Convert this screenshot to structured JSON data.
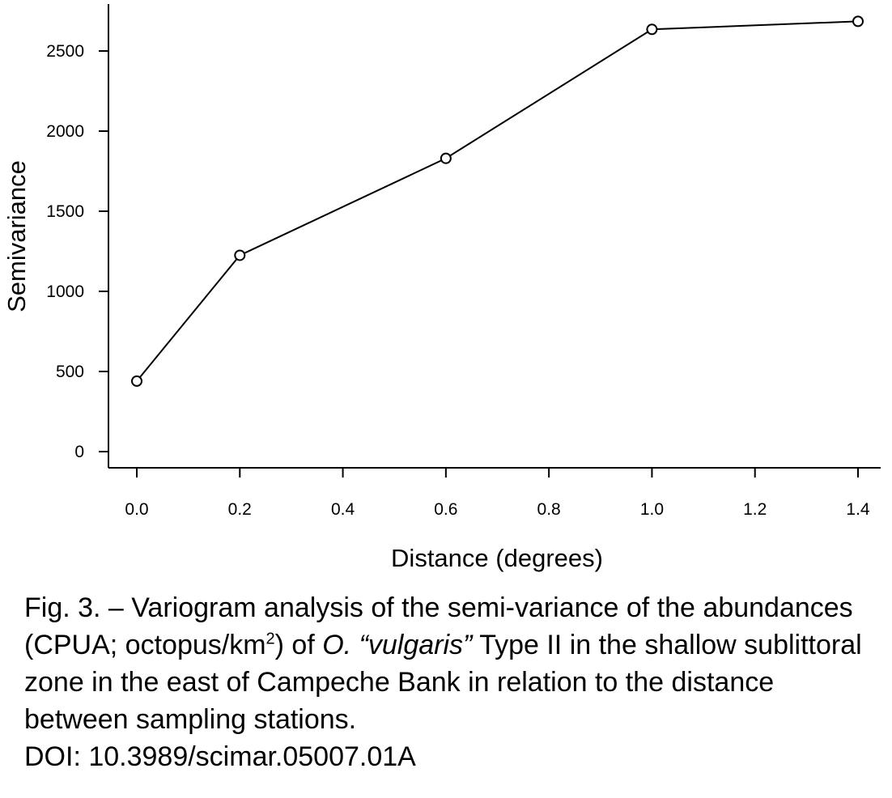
{
  "chart_data": {
    "type": "line",
    "title": "",
    "xlabel": "Distance (degrees)",
    "ylabel": "Semivariance",
    "xlim": [
      -0.1,
      1.48
    ],
    "ylim": [
      -100,
      2800
    ],
    "x_ticks": [
      0.0,
      0.2,
      0.4,
      0.6,
      0.8,
      1.0,
      1.2,
      1.4
    ],
    "x_tick_labels": [
      "0.0",
      "0.2",
      "0.4",
      "0.6",
      "0.8",
      "1.0",
      "1.2",
      "1.4"
    ],
    "y_ticks": [
      0,
      500,
      1000,
      1500,
      2000,
      2500
    ],
    "y_tick_labels": [
      "0",
      "500",
      "1000",
      "1500",
      "2000",
      "2500"
    ],
    "marker": "open-circle",
    "grid": false,
    "series": [
      {
        "x": [
          0.0,
          0.2,
          0.6,
          1.0,
          1.4
        ],
        "y": [
          440,
          1225,
          1830,
          2635,
          2685
        ]
      }
    ]
  },
  "caption": {
    "prefix": "Fig. 3. – Variogram analysis of the semi-variance of the abundances (CPUA; octopus/km",
    "superscript": "2",
    "middle": ") of ",
    "species": "O. “vulgaris”",
    "suffix": " Type II in the shallow sublittoral zone in the east of Campeche Bank in relation to the distance between sampling stations.",
    "doi": "DOI: 10.3989/scimar.05007.01A"
  }
}
